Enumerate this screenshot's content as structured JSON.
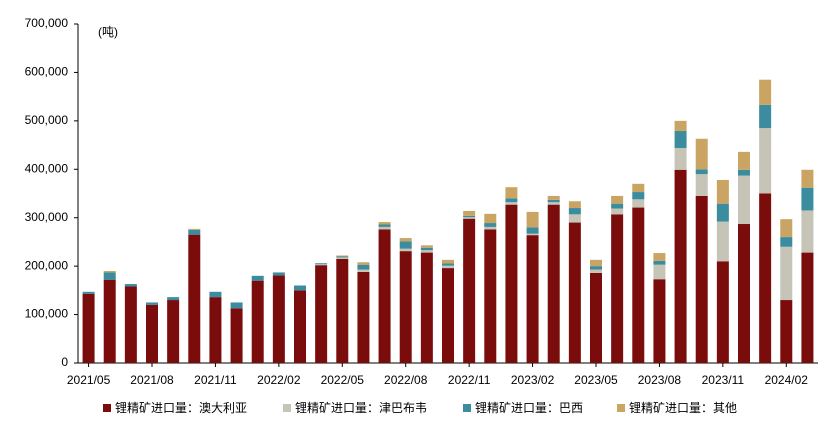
{
  "chart_data": {
    "type": "bar",
    "stacked": true,
    "unit": "(吨)",
    "categories": [
      "2021/05",
      null,
      null,
      "2021/08",
      null,
      null,
      "2021/11",
      null,
      null,
      "2022/02",
      null,
      null,
      "2022/05",
      null,
      null,
      "2022/08",
      null,
      null,
      "2022/11",
      null,
      null,
      "2023/02",
      null,
      null,
      "2023/05",
      null,
      null,
      "2023/08",
      null,
      null,
      "2023/11",
      null,
      null,
      "2024/02",
      null
    ],
    "series": [
      {
        "name": "锂精矿进口量：澳大利亚",
        "color": "#7b0c0c",
        "values": [
          143000,
          172000,
          158000,
          120000,
          130000,
          265000,
          136000,
          113000,
          170000,
          181000,
          150000,
          202000,
          215000,
          188000,
          276000,
          231000,
          228000,
          196000,
          298000,
          276000,
          327000,
          264000,
          327000,
          290000,
          186000,
          307000,
          321000,
          173000,
          399000,
          345000,
          210000,
          287000,
          350000,
          130000,
          228000
        ]
      },
      {
        "name": "锂精矿进口量：津巴布韦",
        "color": "#c6c4b6",
        "values": [
          0,
          0,
          0,
          0,
          0,
          0,
          0,
          0,
          0,
          0,
          0,
          2000,
          3000,
          5000,
          5000,
          5000,
          5000,
          5000,
          3000,
          5000,
          5000,
          3000,
          5000,
          17000,
          7000,
          12000,
          17000,
          30000,
          45000,
          45000,
          82000,
          100000,
          135000,
          110000,
          87000
        ]
      },
      {
        "name": "锂精矿进口量：巴西",
        "color": "#3b8c9e",
        "values": [
          4000,
          15000,
          5000,
          5000,
          6000,
          10000,
          11000,
          12000,
          10000,
          6000,
          10000,
          2000,
          2000,
          10000,
          5000,
          15000,
          5000,
          5000,
          3000,
          8000,
          8000,
          13000,
          5000,
          13000,
          7000,
          10000,
          15000,
          8000,
          35000,
          10000,
          37000,
          12000,
          48000,
          20000,
          47000
        ]
      },
      {
        "name": "锂精矿进口量：其他",
        "color": "#c9a462",
        "values": [
          0,
          3000,
          0,
          0,
          0,
          2000,
          0,
          0,
          0,
          0,
          0,
          0,
          2000,
          5000,
          5000,
          7000,
          5000,
          7000,
          10000,
          19000,
          23000,
          32000,
          8000,
          14000,
          13000,
          16000,
          17000,
          16000,
          21000,
          63000,
          49000,
          37000,
          52000,
          37000,
          37000
        ]
      }
    ],
    "ylim": [
      0,
      700000
    ],
    "yticks": [
      0,
      {
        "value": 100000,
        "label": "100,000"
      },
      {
        "value": 200000,
        "label": "200,000"
      },
      {
        "value": 300000,
        "label": "300,000"
      },
      {
        "value": 400000,
        "label": "400,000"
      },
      {
        "value": 500000,
        "label": "500,000"
      },
      {
        "value": 600000,
        "label": "600,000"
      },
      {
        "value": 700000,
        "label": "700,000"
      }
    ],
    "legend": "bottom"
  }
}
